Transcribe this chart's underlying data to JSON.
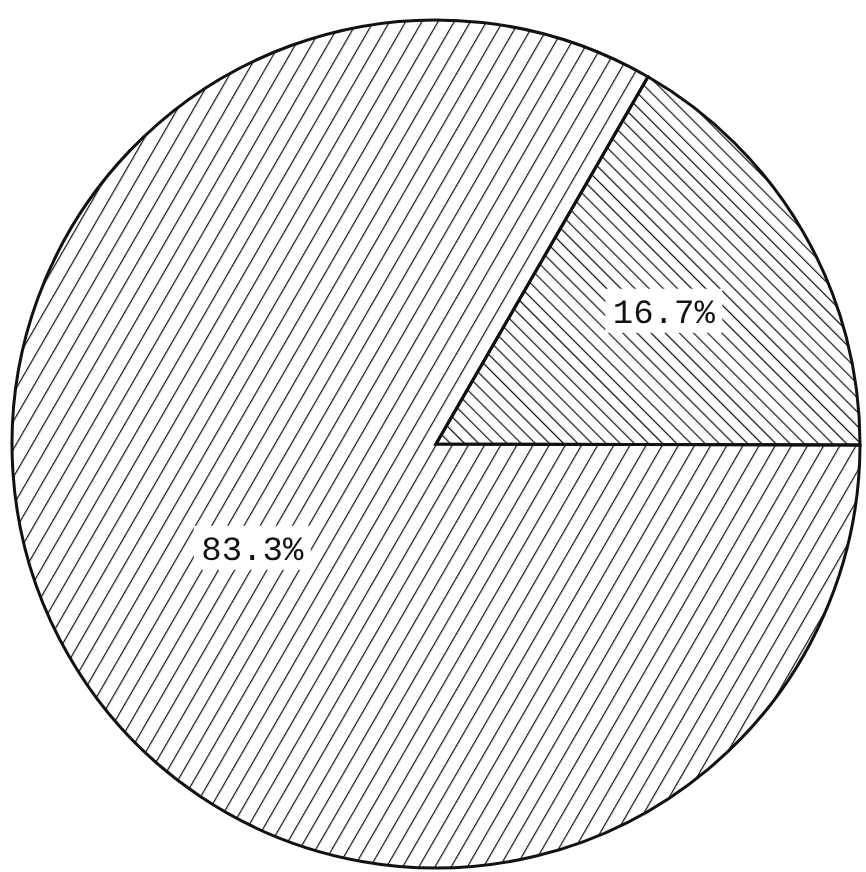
{
  "chart_data": {
    "type": "pie",
    "categories": [
      null,
      null
    ],
    "values": [
      16.7,
      83.3
    ],
    "colors": [
      "#111111",
      "#111111"
    ],
    "value_labels": [
      "16.7%",
      "83.3%"
    ]
  }
}
